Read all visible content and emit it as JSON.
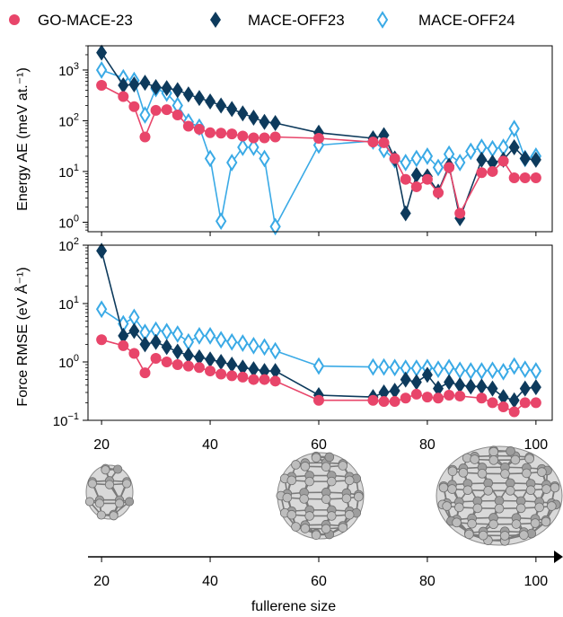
{
  "chart_data": [
    {
      "type": "line",
      "ylabel": "Energy AE (meV at.⁻¹)",
      "yscale": "log",
      "ylim": [
        0.65,
        3000
      ],
      "xlim": [
        17.5,
        103
      ],
      "yticks": [
        {
          "value": 1,
          "base": "10",
          "exp": "0"
        },
        {
          "value": 10,
          "base": "10",
          "exp": "1"
        },
        {
          "value": 100,
          "base": "10",
          "exp": "2"
        },
        {
          "value": 1000,
          "base": "10",
          "exp": "3"
        }
      ],
      "series": [
        {
          "name": "GO-MACE-23",
          "color": "#e8456a",
          "marker": "circle",
          "x": [
            20,
            24,
            26,
            28,
            30,
            32,
            34,
            36,
            38,
            40,
            42,
            44,
            46,
            48,
            50,
            52,
            60,
            70,
            72,
            74,
            76,
            78,
            80,
            82,
            84,
            86,
            90,
            92,
            94,
            96,
            98,
            100
          ],
          "y": [
            500,
            300,
            190,
            48,
            160,
            165,
            130,
            78,
            68,
            58,
            57,
            55,
            50,
            46,
            46,
            48,
            45,
            38,
            37,
            18,
            7,
            5,
            7,
            3.8,
            12,
            1.5,
            9.5,
            10,
            16,
            7.5,
            7.5,
            7.5
          ]
        },
        {
          "name": "MACE-OFF23",
          "color": "#0d3a5c",
          "marker": "diamond",
          "x": [
            20,
            24,
            26,
            28,
            30,
            32,
            34,
            36,
            38,
            40,
            42,
            44,
            46,
            48,
            50,
            52,
            60,
            70,
            72,
            74,
            76,
            78,
            80,
            82,
            84,
            86,
            90,
            92,
            94,
            96,
            98,
            100
          ],
          "y": [
            2200,
            500,
            520,
            560,
            460,
            440,
            400,
            330,
            280,
            240,
            200,
            170,
            140,
            115,
            95,
            90,
            58,
            45,
            52,
            18,
            1.5,
            8.5,
            8,
            4,
            13,
            1.2,
            17,
            15,
            17,
            30,
            18,
            17
          ]
        },
        {
          "name": "MACE-OFF24",
          "color": "#3aaae6",
          "marker": "diamond-open",
          "x": [
            20,
            24,
            26,
            28,
            30,
            32,
            34,
            36,
            38,
            40,
            42,
            44,
            46,
            48,
            50,
            52,
            60,
            70,
            72,
            74,
            76,
            78,
            80,
            82,
            84,
            86,
            88,
            90,
            92,
            94,
            96,
            98,
            100
          ],
          "y": [
            1000,
            700,
            620,
            130,
            430,
            350,
            200,
            95,
            75,
            18,
            1.05,
            15,
            30,
            30,
            18,
            0.82,
            33,
            40,
            27,
            17,
            15,
            18,
            20,
            12,
            22,
            15,
            25,
            30,
            28,
            30,
            70,
            18,
            20
          ]
        }
      ]
    },
    {
      "type": "line",
      "ylabel": "Force RMSE (eV Å⁻¹)",
      "yscale": "log",
      "ylim": [
        0.1,
        100
      ],
      "xlim": [
        17.5,
        103
      ],
      "yticks": [
        {
          "value": 0.1,
          "base": "10",
          "exp": "−1"
        },
        {
          "value": 1,
          "base": "10",
          "exp": "0"
        },
        {
          "value": 10,
          "base": "10",
          "exp": "1"
        },
        {
          "value": 100,
          "base": "10",
          "exp": "2"
        }
      ],
      "series": [
        {
          "name": "GO-MACE-23",
          "color": "#e8456a",
          "marker": "circle",
          "x": [
            20,
            24,
            26,
            28,
            30,
            32,
            34,
            36,
            38,
            40,
            42,
            44,
            46,
            48,
            50,
            52,
            60,
            70,
            72,
            74,
            76,
            78,
            80,
            82,
            84,
            86,
            90,
            92,
            94,
            96,
            98,
            100
          ],
          "y": [
            2.4,
            1.9,
            1.4,
            0.65,
            1.15,
            1.0,
            0.9,
            0.85,
            0.8,
            0.7,
            0.62,
            0.58,
            0.55,
            0.5,
            0.5,
            0.47,
            0.22,
            0.22,
            0.21,
            0.21,
            0.24,
            0.28,
            0.25,
            0.24,
            0.27,
            0.26,
            0.24,
            0.2,
            0.17,
            0.14,
            0.2,
            0.2
          ]
        },
        {
          "name": "MACE-OFF23",
          "color": "#0d3a5c",
          "marker": "diamond",
          "x": [
            20,
            24,
            26,
            28,
            30,
            32,
            34,
            36,
            38,
            40,
            42,
            44,
            46,
            48,
            50,
            52,
            60,
            70,
            72,
            74,
            76,
            78,
            80,
            82,
            84,
            86,
            88,
            90,
            92,
            94,
            96,
            98,
            100
          ],
          "y": [
            80,
            2.8,
            3.4,
            2.0,
            2.2,
            1.8,
            1.5,
            1.3,
            1.2,
            1.1,
            1.0,
            0.9,
            0.8,
            0.75,
            0.7,
            0.7,
            0.27,
            0.25,
            0.3,
            0.32,
            0.5,
            0.45,
            0.6,
            0.35,
            0.45,
            0.4,
            0.38,
            0.38,
            0.35,
            0.25,
            0.22,
            0.35,
            0.37
          ]
        },
        {
          "name": "MACE-OFF24",
          "color": "#3aaae6",
          "marker": "diamond-open",
          "x": [
            20,
            24,
            26,
            28,
            30,
            32,
            34,
            36,
            38,
            40,
            42,
            44,
            46,
            48,
            50,
            52,
            60,
            70,
            72,
            74,
            76,
            78,
            80,
            82,
            84,
            86,
            88,
            90,
            92,
            94,
            96,
            98,
            100
          ],
          "y": [
            8.0,
            4.5,
            5.8,
            3.2,
            3.5,
            3.3,
            3.0,
            2.2,
            2.8,
            2.8,
            2.4,
            2.2,
            2.1,
            1.9,
            1.8,
            1.55,
            0.85,
            0.82,
            0.82,
            0.8,
            0.78,
            0.78,
            0.8,
            0.75,
            0.8,
            0.72,
            0.7,
            0.7,
            0.72,
            0.68,
            0.85,
            0.75,
            0.7
          ]
        }
      ]
    }
  ],
  "legend": [
    {
      "label": "GO-MACE-23",
      "color": "#e8456a",
      "marker": "circle"
    },
    {
      "label": "MACE-OFF23",
      "color": "#0d3a5c",
      "marker": "diamond"
    },
    {
      "label": "MACE-OFF24",
      "color": "#3aaae6",
      "marker": "diamond-open"
    }
  ],
  "x_ticks": [
    20,
    40,
    60,
    80,
    100
  ],
  "x_ticks_bottom": [
    20,
    40,
    60,
    80,
    100
  ],
  "xlabel": "fullerene size",
  "molecules": [
    {
      "icon": "fullerene-c20-icon",
      "size": 20
    },
    {
      "icon": "fullerene-c60-icon",
      "size": 60
    },
    {
      "icon": "fullerene-c100-icon",
      "size": 100
    }
  ]
}
